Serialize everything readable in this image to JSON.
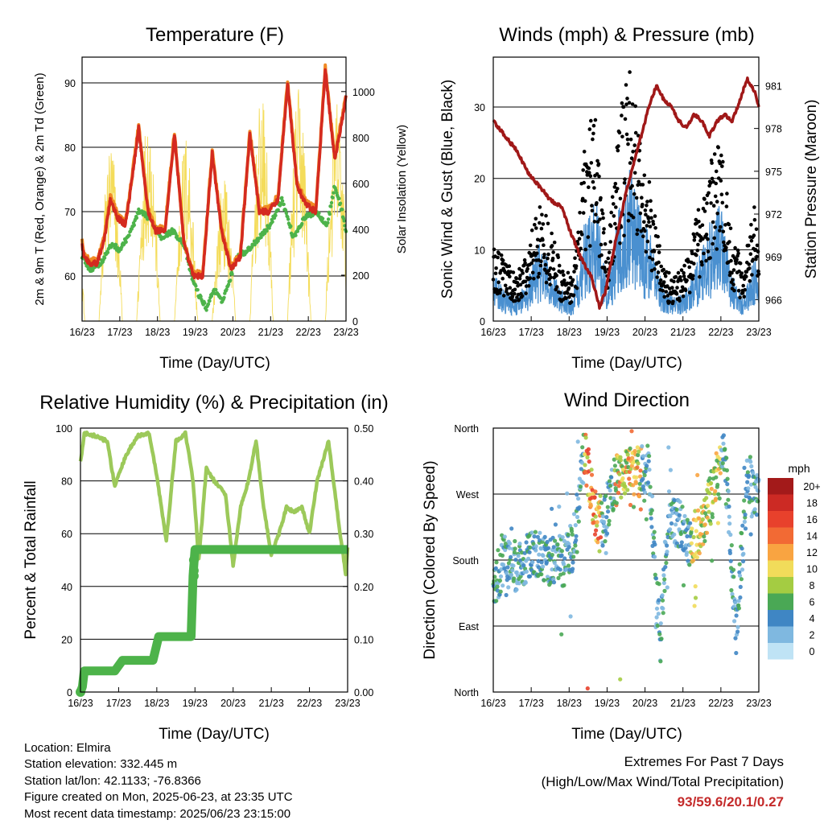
{
  "info": {
    "location": "Location: Elmira",
    "elevation": "Station elevation: 332.445 m",
    "latlon": "Station lat/lon: 42.1133; -76.8366",
    "created": "Figure created on Mon, 2025-06-23, at 23:35 UTC",
    "recent": "Most recent data timestamp: 2025/06/23 23:15:00"
  },
  "extremes": {
    "line1": "Extremes For Past 7 Days",
    "line2": "(High/Low/Max Wind/Total Precipitation)",
    "values": "93/59.6/20.1/0.27"
  },
  "chart_data": [
    {
      "type": "line",
      "title": "Temperature (F)",
      "xlabel": "Time (Day/UTC)",
      "ylabel": "2m & 9m T (Red, Orange) & 2m Td (Green)",
      "y2label": "Solar Insolation (Yellow)",
      "x_ticks": [
        "16/23",
        "17/23",
        "18/23",
        "19/23",
        "20/23",
        "21/23",
        "22/23",
        "23/23"
      ],
      "ylim": [
        53,
        94
      ],
      "y_ticks": [
        60,
        70,
        80,
        90
      ],
      "y2lim": [
        0,
        1150
      ],
      "y2_ticks": [
        0,
        200,
        400,
        600,
        800,
        1000
      ],
      "grid": true,
      "colors": {
        "temp2m": "#d42a20",
        "temp9m": "#f08a24",
        "dewpoint": "#4db34a",
        "solar": "#f4dc5a"
      },
      "series": [
        {
          "name": "2m T (Red)",
          "x": [
            0,
            0.05,
            0.2,
            0.4,
            0.6,
            0.75,
            0.95,
            1.15,
            1.3,
            1.5,
            1.75,
            1.95,
            2.2,
            2.45,
            2.7,
            2.95,
            3.2,
            3.45,
            3.7,
            3.95,
            4.2,
            4.45,
            4.7,
            4.95,
            5.2,
            5.45,
            5.7,
            5.95,
            6.2,
            6.45,
            6.7,
            6.95,
            7.0
          ],
          "values": [
            65,
            63,
            62,
            62,
            66,
            72,
            69,
            68,
            74,
            83,
            70,
            67,
            67,
            82,
            65,
            60,
            60,
            79,
            67,
            61,
            63,
            82,
            70,
            70,
            72,
            90,
            74,
            71,
            70,
            92,
            78,
            86,
            88
          ]
        },
        {
          "name": "9m T (Orange)",
          "x": [
            0,
            0.05,
            0.2,
            0.4,
            0.6,
            0.75,
            0.95,
            1.15,
            1.3,
            1.5,
            1.75,
            1.95,
            2.2,
            2.45,
            2.7,
            2.95,
            3.2,
            3.45,
            3.7,
            3.95,
            4.2,
            4.45,
            4.7,
            4.95,
            5.2,
            5.45,
            5.7,
            5.95,
            6.2,
            6.45,
            6.7,
            6.95,
            7.0
          ],
          "values": [
            65.4,
            63.4,
            62.4,
            62.4,
            66.4,
            72.4,
            69.4,
            68.4,
            74.4,
            83.4,
            70.4,
            67.4,
            67.4,
            82.4,
            65.4,
            60.4,
            60.4,
            79.4,
            67.4,
            61.4,
            63.4,
            82.4,
            70.4,
            70.4,
            72.4,
            90.4,
            74.4,
            71.4,
            70.4,
            92.4,
            78.4,
            86.4,
            88.4
          ]
        },
        {
          "name": "2m Td (Green)",
          "x": [
            0,
            0.2,
            0.5,
            0.8,
            1.0,
            1.3,
            1.5,
            1.8,
            2.1,
            2.4,
            2.7,
            2.9,
            3.1,
            3.3,
            3.5,
            3.7,
            3.9,
            4.1,
            4.4,
            4.7,
            5.0,
            5.3,
            5.6,
            5.9,
            6.2,
            6.5,
            6.7,
            6.9,
            7.0
          ],
          "values": [
            63,
            61,
            62,
            65,
            64,
            67,
            70,
            69,
            66,
            67,
            65,
            60,
            57,
            55,
            58,
            56,
            59,
            63,
            64,
            66,
            68,
            72,
            66,
            69,
            70,
            68,
            74,
            70,
            67
          ]
        },
        {
          "name": "Solar Insolation (Yellow)",
          "x": [
            0.45,
            0.65,
            0.85,
            1.05,
            1.45,
            1.65,
            1.85,
            2.05,
            2.45,
            2.65,
            2.85,
            3.05,
            3.45,
            3.65,
            3.85,
            4.05,
            4.45,
            4.65,
            4.85,
            5.05,
            5.45,
            5.65,
            5.85,
            6.05,
            6.45,
            6.65,
            6.85,
            7.0
          ],
          "values": [
            0,
            700,
            900,
            0,
            0,
            1100,
            800,
            0,
            0,
            900,
            750,
            0,
            0,
            650,
            600,
            0,
            0,
            1000,
            950,
            0,
            0,
            1000,
            1050,
            0,
            0,
            1050,
            900,
            0
          ]
        }
      ]
    },
    {
      "type": "scatter",
      "title": "Winds (mph) & Pressure (mb)",
      "xlabel": "Time (Day/UTC)",
      "ylabel": "Sonic Wind & Gust (Blue, Black)",
      "y2label": "Station Pressure (Maroon)",
      "x_ticks": [
        "16/23",
        "17/23",
        "18/23",
        "19/23",
        "20/23",
        "21/23",
        "22/23",
        "23/23"
      ],
      "ylim": [
        0,
        37
      ],
      "y_ticks": [
        0,
        10,
        20,
        30
      ],
      "y2lim": [
        964.5,
        983
      ],
      "y2_ticks": [
        966,
        969,
        972,
        975,
        978,
        981
      ],
      "grid": true,
      "colors": {
        "wind": "#4a90d0",
        "gust": "#000000",
        "pressure": "#a01818"
      },
      "series": [
        {
          "name": "Sonic Wind (Blue)",
          "x": [
            0,
            0.3,
            0.6,
            0.9,
            1.2,
            1.5,
            1.8,
            2.1,
            2.4,
            2.7,
            3.0,
            3.3,
            3.6,
            3.9,
            4.2,
            4.5,
            4.8,
            5.1,
            5.4,
            5.7,
            6.0,
            6.3,
            6.6,
            6.9,
            7.0
          ],
          "values": [
            6,
            4,
            3,
            5,
            10,
            7,
            4,
            3,
            12,
            16,
            4,
            14,
            20,
            13,
            10,
            4,
            3,
            4,
            8,
            12,
            15,
            6,
            3,
            8,
            5
          ]
        },
        {
          "name": "Gust (Black)",
          "x": [
            0,
            0.3,
            0.6,
            0.9,
            1.2,
            1.5,
            1.8,
            2.1,
            2.4,
            2.7,
            3.0,
            3.3,
            3.6,
            3.9,
            4.2,
            4.5,
            4.8,
            5.1,
            5.4,
            5.7,
            6.0,
            6.3,
            6.6,
            6.9,
            7.0
          ],
          "values": [
            9,
            7,
            5,
            8,
            14,
            11,
            6,
            5,
            19,
            26,
            8,
            22,
            30,
            20,
            14,
            6,
            5,
            7,
            13,
            18,
            21,
            10,
            6,
            14,
            8
          ]
        },
        {
          "name": "Station Pressure (Maroon)",
          "x": [
            0,
            0.3,
            0.6,
            0.9,
            1.2,
            1.5,
            1.8,
            2.0,
            2.3,
            2.6,
            2.8,
            2.95,
            3.1,
            3.3,
            3.5,
            3.7,
            3.9,
            4.1,
            4.3,
            4.5,
            4.7,
            4.9,
            5.1,
            5.3,
            5.5,
            5.7,
            5.9,
            6.1,
            6.3,
            6.5,
            6.7,
            6.9,
            7.0
          ],
          "values": [
            978.5,
            977.5,
            976.5,
            975,
            974,
            973,
            972.5,
            971,
            969,
            967.5,
            965.5,
            966.5,
            968.5,
            971,
            973.5,
            975.5,
            977.5,
            979.5,
            981,
            980,
            979.5,
            978.5,
            978,
            979,
            978.5,
            977.5,
            978.5,
            979,
            978.5,
            980,
            981.5,
            980.5,
            979.5
          ]
        }
      ]
    },
    {
      "type": "line",
      "title": "Relative Humidity (%) & Precipitation (in)",
      "xlabel": "Time (Day/UTC)",
      "ylabel": "Percent & Total Rainfall",
      "x_ticks": [
        "16/23",
        "17/23",
        "18/23",
        "19/23",
        "20/23",
        "21/23",
        "22/23",
        "23/23"
      ],
      "ylim": [
        0,
        100
      ],
      "y_ticks": [
        0,
        20,
        40,
        60,
        80,
        100
      ],
      "y2lim": [
        0,
        0.5
      ],
      "y2_ticks": [
        "0.00",
        "0.10",
        "0.20",
        "0.30",
        "0.40",
        "0.50"
      ],
      "grid": true,
      "colors": {
        "rh": "#9cc95a",
        "precip": "#4db34a"
      },
      "series": [
        {
          "name": "RH",
          "x": [
            0,
            0.1,
            0.4,
            0.7,
            0.9,
            1.2,
            1.5,
            1.8,
            2.0,
            2.25,
            2.5,
            2.75,
            2.95,
            3.1,
            3.3,
            3.5,
            3.8,
            4.0,
            4.2,
            4.4,
            4.6,
            4.8,
            5.0,
            5.2,
            5.4,
            5.6,
            5.8,
            6.0,
            6.2,
            6.5,
            6.8,
            6.95,
            7.0
          ],
          "values": [
            87,
            98,
            97,
            95,
            78,
            90,
            97,
            98,
            82,
            57,
            95,
            98,
            80,
            50,
            85,
            80,
            75,
            48,
            70,
            80,
            95,
            70,
            52,
            60,
            70,
            68,
            70,
            60,
            80,
            95,
            60,
            45,
            55
          ]
        },
        {
          "name": "Total Rainfall",
          "x": [
            0,
            0.05,
            0.1,
            0.9,
            1.1,
            1.9,
            2.05,
            2.9,
            2.95,
            3.0,
            7.0
          ],
          "values": [
            0,
            0.01,
            0.04,
            0.04,
            0.06,
            0.06,
            0.105,
            0.105,
            0.22,
            0.27,
            0.27
          ]
        }
      ]
    },
    {
      "type": "scatter",
      "title": "Wind Direction",
      "xlabel": "Time (Day/UTC)",
      "ylabel": "Direction (Colored By Speed)",
      "x_ticks": [
        "16/23",
        "17/23",
        "18/23",
        "19/23",
        "20/23",
        "21/23",
        "22/23",
        "23/23"
      ],
      "y_ticks": [
        "North",
        "East",
        "South",
        "West",
        "North"
      ],
      "ylim": [
        0,
        360
      ],
      "grid": true,
      "legend": {
        "title": "mph",
        "placement": "right",
        "labels": [
          "20+",
          "18",
          "16",
          "14",
          "12",
          "10",
          "8",
          "6",
          "4",
          "2",
          "0"
        ],
        "colors": [
          "#a31a1a",
          "#cc2a24",
          "#e8412c",
          "#f26a34",
          "#f9a441",
          "#f1dc5a",
          "#a4cc42",
          "#4aa855",
          "#3f86c4",
          "#7fb8e0",
          "#bfe3f5"
        ]
      },
      "series": [
        {
          "name": "Direction",
          "x": [
            0,
            0.3,
            0.6,
            0.9,
            1.2,
            1.5,
            1.8,
            2.1,
            2.4,
            2.7,
            2.9,
            3.2,
            3.5,
            3.8,
            4.1,
            4.4,
            4.6,
            4.9,
            5.2,
            5.5,
            5.8,
            6.1,
            6.4,
            6.7,
            6.9
          ],
          "values": [
            145,
            180,
            170,
            185,
            190,
            180,
            175,
            200,
            330,
            240,
            230,
            290,
            300,
            300,
            310,
            60,
            240,
            230,
            200,
            230,
            270,
            320,
            80,
            290,
            270
          ]
        }
      ]
    }
  ]
}
